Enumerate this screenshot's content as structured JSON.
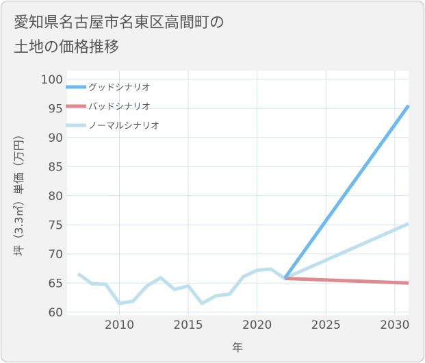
{
  "chart_data": {
    "type": "line",
    "title": "愛知県名古屋市名東区高間町の土地の価格推移",
    "title_lines": [
      "愛知県名古屋市名東区高間町の",
      "土地の価格推移"
    ],
    "xlabel": "年",
    "ylabel": "坪（3.3㎡）単価（万円）",
    "xlim": [
      2006.2,
      2031
    ],
    "ylim": [
      59.5,
      101.5
    ],
    "x_ticks": [
      2010,
      2015,
      2020,
      2025,
      2030
    ],
    "y_ticks": [
      60,
      65,
      70,
      75,
      80,
      85,
      90,
      95,
      100
    ],
    "grid": true,
    "legend_position": "top-left",
    "series": [
      {
        "name": "グッドシナリオ",
        "color": "#6cbaf0",
        "x": [
          2022,
          2031
        ],
        "y": [
          65.8,
          95.5
        ]
      },
      {
        "name": "バッドシナリオ",
        "color": "#de8a8e",
        "x": [
          2022,
          2031
        ],
        "y": [
          65.8,
          65.0
        ]
      },
      {
        "name": "ノーマルシナリオ",
        "color": "#bde0ee",
        "x": [
          2007,
          2008,
          2009,
          2010,
          2011,
          2012,
          2013,
          2014,
          2015,
          2016,
          2017,
          2018,
          2019,
          2020,
          2021,
          2022,
          2031
        ],
        "y": [
          66.6,
          64.9,
          64.8,
          61.5,
          61.9,
          64.5,
          65.9,
          63.9,
          64.5,
          61.5,
          62.8,
          63.1,
          66.1,
          67.2,
          67.4,
          65.8,
          75.2
        ]
      }
    ]
  }
}
